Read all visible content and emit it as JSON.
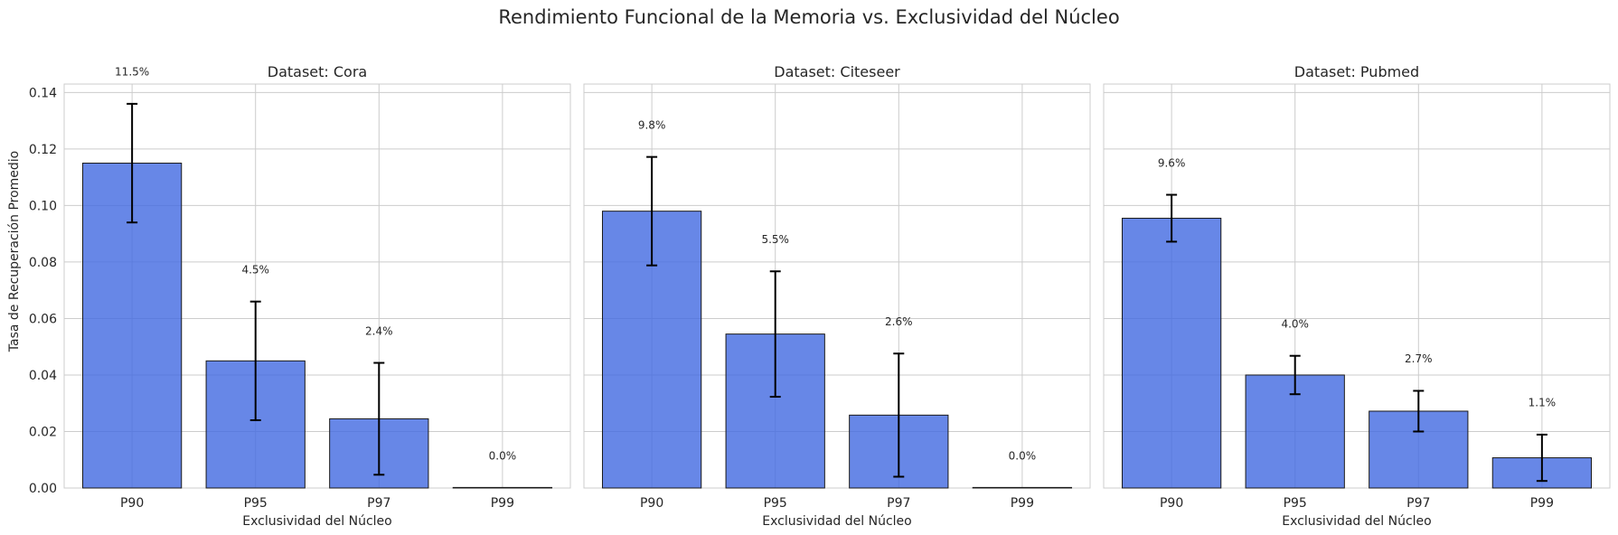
{
  "figure": {
    "title": "Rendimiento Funcional de la Memoria vs. Exclusividad del Núcleo",
    "ylabel": "Tasa de Recuperación Promedio"
  },
  "colors": {
    "bar_fill": "#4169E1",
    "bar_edge": "#1a1a1a",
    "grid": "#cccccc",
    "spine": "#cccccc",
    "text": "#262626",
    "error_bar": "#000000"
  },
  "chart_data": [
    {
      "type": "bar",
      "title": "Dataset: Cora",
      "xlabel": "Exclusividad del Núcleo",
      "categories": [
        "P90",
        "P95",
        "P97",
        "P99"
      ],
      "values": [
        0.115,
        0.045,
        0.0245,
        0.0
      ],
      "errors": [
        0.021,
        0.021,
        0.0198,
        0.0
      ],
      "value_labels": [
        "11.5%",
        "4.5%",
        "2.4%",
        "0.0%"
      ],
      "ylim": [
        0,
        0.143
      ],
      "yticks": [
        0.0,
        0.02,
        0.04,
        0.06,
        0.08,
        0.1,
        0.12,
        0.14
      ],
      "ytick_labels": [
        "0.00",
        "0.02",
        "0.04",
        "0.06",
        "0.08",
        "0.10",
        "0.12",
        "0.14"
      ],
      "grid": true
    },
    {
      "type": "bar",
      "title": "Dataset: Citeseer",
      "xlabel": "Exclusividad del Núcleo",
      "categories": [
        "P90",
        "P95",
        "P97",
        "P99"
      ],
      "values": [
        0.098,
        0.0545,
        0.0258,
        0.0
      ],
      "errors": [
        0.0192,
        0.0222,
        0.0218,
        0.0
      ],
      "value_labels": [
        "9.8%",
        "5.5%",
        "2.6%",
        "0.0%"
      ],
      "ylim": [
        0,
        0.143
      ],
      "yticks": [
        0.0,
        0.02,
        0.04,
        0.06,
        0.08,
        0.1,
        0.12,
        0.14
      ],
      "grid": true
    },
    {
      "type": "bar",
      "title": "Dataset: Pubmed",
      "xlabel": "Exclusividad del Núcleo",
      "categories": [
        "P90",
        "P95",
        "P97",
        "P99"
      ],
      "values": [
        0.0955,
        0.04,
        0.0272,
        0.0107
      ],
      "errors": [
        0.0083,
        0.0068,
        0.0072,
        0.0082
      ],
      "value_labels": [
        "9.6%",
        "4.0%",
        "2.7%",
        "1.1%"
      ],
      "ylim": [
        0,
        0.143
      ],
      "yticks": [
        0.0,
        0.02,
        0.04,
        0.06,
        0.08,
        0.1,
        0.12,
        0.14
      ],
      "grid": true
    }
  ]
}
